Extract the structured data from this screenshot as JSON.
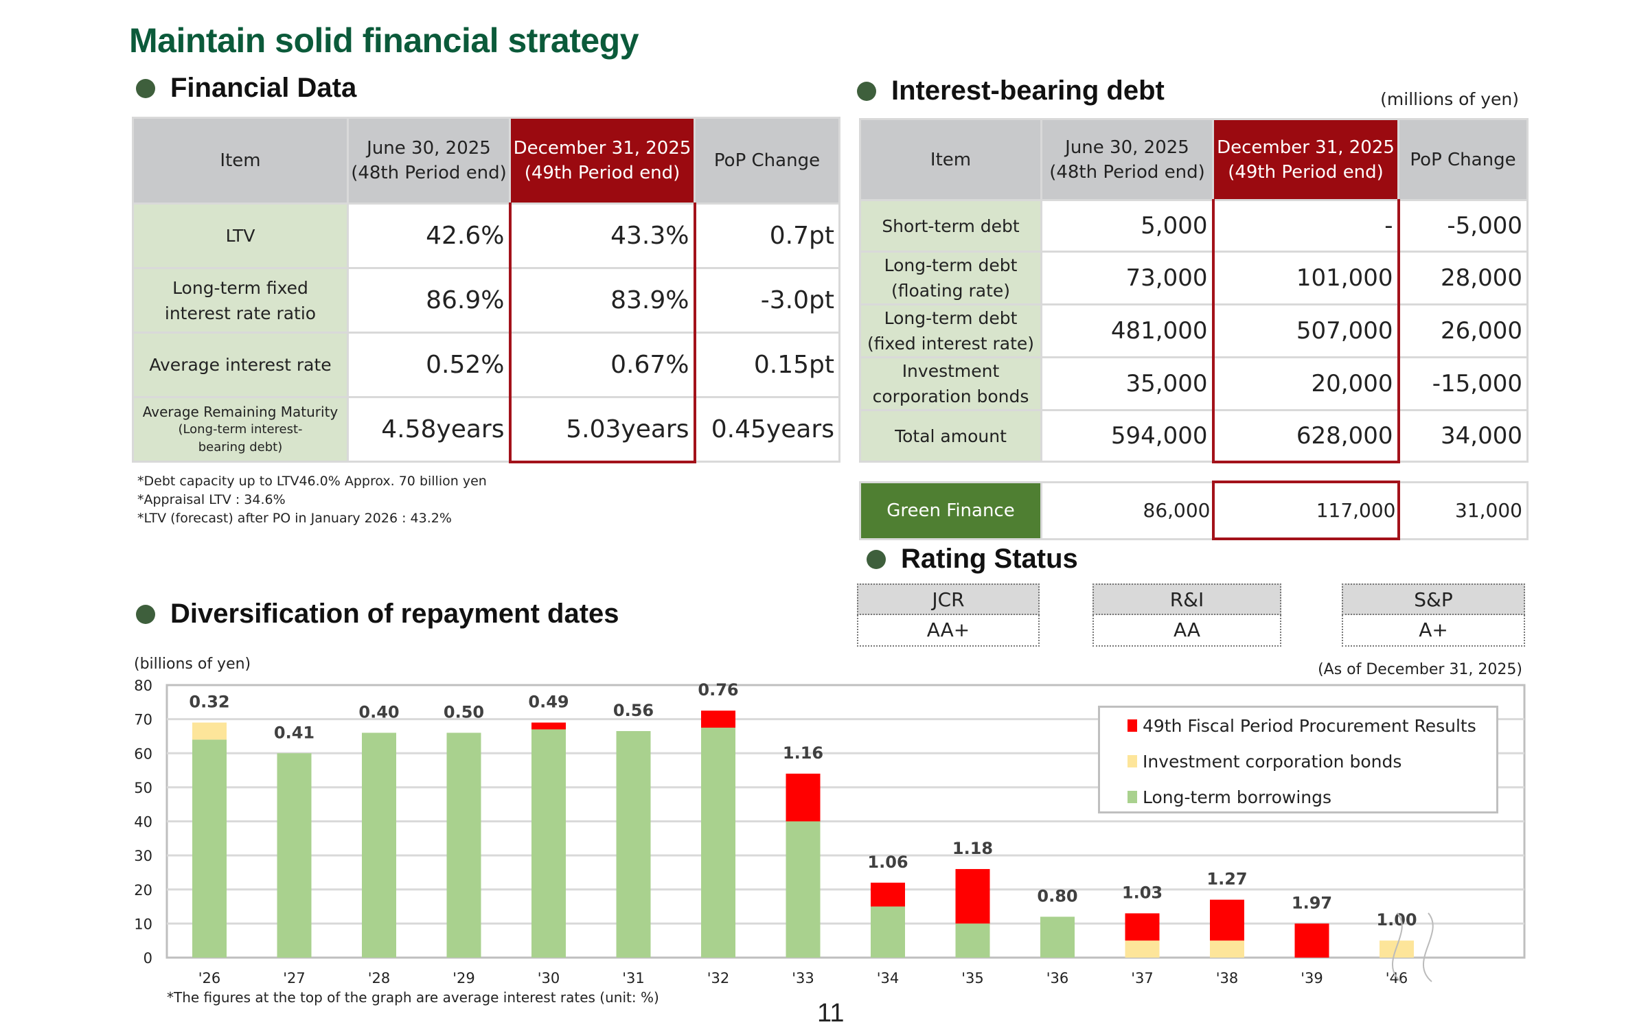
{
  "title": "Maintain solid financial strategy",
  "financial_data": {
    "heading": "Financial Data",
    "headers": [
      "Item",
      "June 30, 2025",
      "(48th Period end)",
      "December 31, 2025",
      "(49th Period end)",
      "PoP Change"
    ],
    "rows": [
      {
        "item": "LTV",
        "item2": "",
        "prev": "42.6%",
        "curr": "43.3%",
        "change": "0.7pt"
      },
      {
        "item": "Long-term fixed",
        "item2": "interest rate ratio",
        "prev": "86.9%",
        "curr": "83.9%",
        "change": "-3.0pt"
      },
      {
        "item": "Average interest rate",
        "item2": "",
        "prev": "0.52%",
        "curr": "0.67%",
        "change": "0.15pt"
      },
      {
        "item": "Average Remaining Maturity",
        "item2": "(Long-term interest-bearing debt)",
        "prev": "4.58years",
        "curr": "5.03years",
        "change": "0.45years"
      }
    ],
    "notes": [
      "*Debt capacity up to LTV46.0%   Approx. 70 billion yen",
      "*Appraisal LTV : 34.6%",
      "*LTV (forecast) after PO in January 2026 : 43.2%"
    ]
  },
  "debt": {
    "heading": "Interest-bearing debt",
    "unit": "(millions of yen)",
    "headers": [
      "Item",
      "June 30, 2025",
      "(48th Period end)",
      "December 31, 2025",
      "(49th Period end)",
      "PoP Change"
    ],
    "rows": [
      {
        "item": "Short-term debt",
        "item2": "",
        "prev": "5,000",
        "curr": "-",
        "change": "-5,000"
      },
      {
        "item": "Long-term debt",
        "item2": "(floating rate)",
        "prev": "73,000",
        "curr": "101,000",
        "change": "28,000"
      },
      {
        "item": "Long-term debt",
        "item2": "(fixed interest rate)",
        "prev": "481,000",
        "curr": "507,000",
        "change": "26,000"
      },
      {
        "item": "Investment",
        "item2": "corporation bonds",
        "prev": "35,000",
        "curr": "20,000",
        "change": "-15,000"
      },
      {
        "item": "Total amount",
        "item2": "",
        "prev": "594,000",
        "curr": "628,000",
        "change": "34,000"
      }
    ],
    "green": {
      "item": "Green Finance",
      "prev": "86,000",
      "curr": "117,000",
      "change": "31,000"
    }
  },
  "rating": {
    "heading": "Rating Status",
    "agencies": [
      {
        "name": "JCR",
        "value": "AA+"
      },
      {
        "name": "R&I",
        "value": "AA"
      },
      {
        "name": "S&P",
        "value": "A+"
      }
    ]
  },
  "colors": {
    "green": "#a9d18e",
    "yellow": "#fde59a",
    "red": "#ff0000",
    "brand": "#0b5a3a",
    "highlight": "#9b0a10"
  },
  "chart_data": {
    "type": "bar",
    "title": "Diversification of repayment dates",
    "ylabel": "(billions of yen)",
    "as_of": "(As of December 31, 2025)",
    "ylim": [
      0,
      80
    ],
    "yticks": [
      "0",
      "10",
      "20",
      "30",
      "40",
      "50",
      "60",
      "70",
      "80"
    ],
    "categories": [
      "'26",
      "'27",
      "'28",
      "'29",
      "'30",
      "'31",
      "'32",
      "'33",
      "'34",
      "'35",
      "'36",
      "'37",
      "'38",
      "'39",
      "'46"
    ],
    "series": [
      {
        "name": "Long-term borrowings",
        "color": "#a9d18e",
        "values": [
          64,
          60,
          66,
          66,
          67,
          66.5,
          67.5,
          40,
          15,
          10,
          12,
          0,
          0,
          0,
          0
        ]
      },
      {
        "name": "Investment corporation bonds",
        "color": "#fde59a",
        "values": [
          5,
          0,
          0,
          0,
          0,
          0,
          0,
          0,
          0,
          0,
          0,
          5,
          5,
          0,
          5
        ]
      },
      {
        "name": "49th Fiscal Period Procurement Results",
        "color": "#ff0000",
        "values": [
          0,
          0,
          0,
          0,
          2,
          0,
          5,
          14,
          7,
          16,
          0,
          8,
          12,
          10,
          0
        ]
      }
    ],
    "rate_labels": [
      "0.32",
      "0.41",
      "0.40",
      "0.50",
      "0.49",
      "0.56",
      "0.76",
      "1.16",
      "1.06",
      "1.18",
      "0.80",
      "1.03",
      "1.27",
      "1.97",
      "1.00"
    ],
    "legend": [
      "49th Fiscal Period Procurement Results",
      "Investment corporation bonds",
      "Long-term borrowings"
    ],
    "footnote": "*The figures at the top of the graph are average interest rates (unit: %)"
  },
  "page_number": "11"
}
